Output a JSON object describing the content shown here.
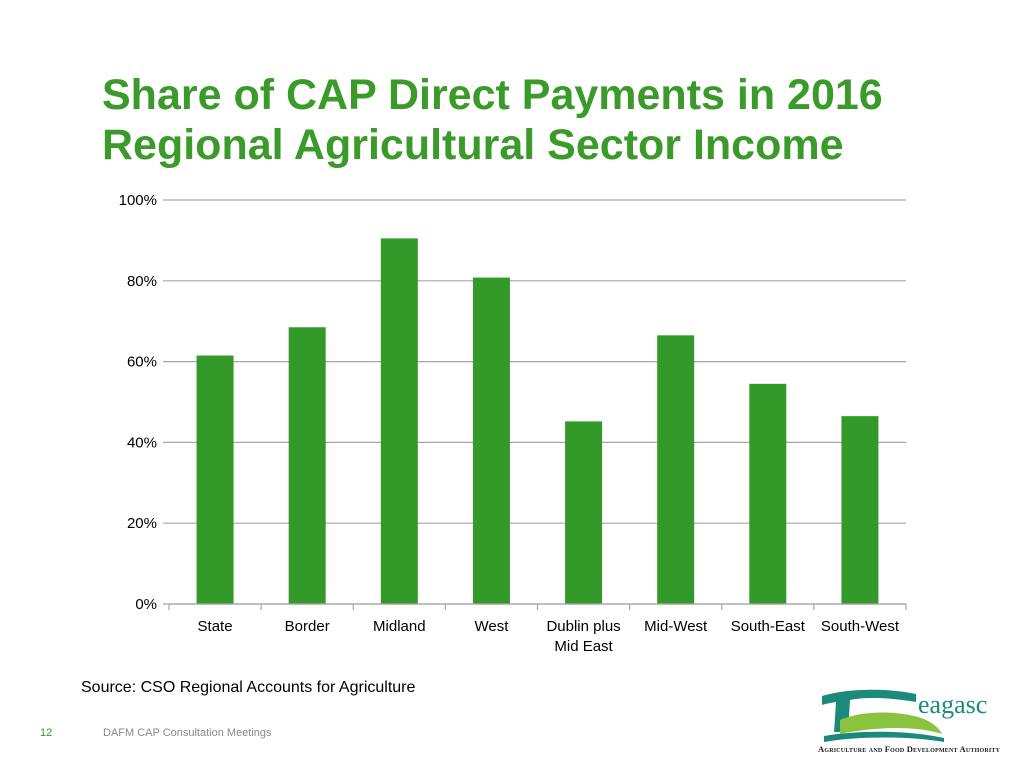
{
  "slide": {
    "title_line1": "Share of CAP Direct Payments in 2016",
    "title_line2": "Regional Agricultural Sector Income",
    "source": "Source: CSO Regional Accounts for Agriculture",
    "page_number": "12",
    "footer": "DAFM CAP Consultation Meetings",
    "logo": {
      "wordmark": "eagasc",
      "caption": "Agriculture and Food Development Authority"
    }
  },
  "colors": {
    "title": "#3a9a2a",
    "bar": "#339a2a",
    "grid": "#a6a6a6",
    "logo_teal": "#1a8a7a",
    "logo_green": "#8ac43f"
  },
  "chart_data": {
    "type": "bar",
    "categories": [
      "State",
      "Border",
      "Midland",
      "West",
      "Dublin plus Mid East",
      "Mid-West",
      "South-East",
      "South-West"
    ],
    "category_label_lines": [
      [
        "State"
      ],
      [
        "Border"
      ],
      [
        "Midland"
      ],
      [
        "West"
      ],
      [
        "Dublin plus",
        "Mid East"
      ],
      [
        "Mid-West"
      ],
      [
        "South-East"
      ],
      [
        "South-West"
      ]
    ],
    "values": [
      61.5,
      68.5,
      90.5,
      80.8,
      45.2,
      66.5,
      54.5,
      46.5
    ],
    "ylim": [
      0,
      100
    ],
    "yticks": [
      0,
      20,
      40,
      60,
      80,
      100
    ],
    "ytick_labels": [
      "0%",
      "20%",
      "40%",
      "60%",
      "80%",
      "100%"
    ],
    "grid": true,
    "legend": false,
    "xlabel": "",
    "ylabel": ""
  }
}
